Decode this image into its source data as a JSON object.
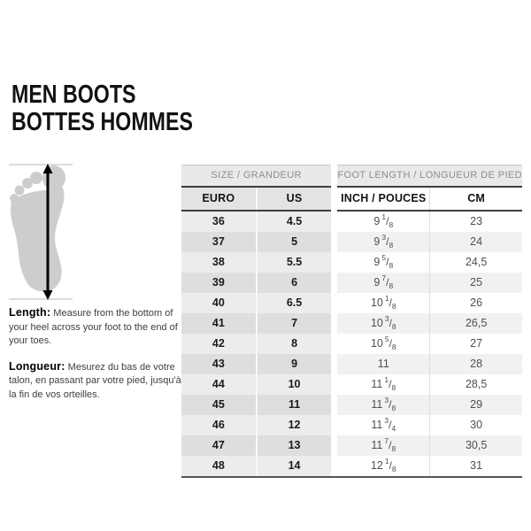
{
  "title": {
    "line1": "MEN BOOTS",
    "line2": "BOTTES HOMMES"
  },
  "notes": {
    "en_label": "Length:",
    "en_text": "Measure from the bottom of your heel across your foot to the end of your toes.",
    "fr_label": "Longueur:",
    "fr_text": "Mesurez du bas de votre talon, en passant par votre pied, jusqu'à la fin de vos orteilles."
  },
  "icons": {
    "foot": "foot-sole-silhouette",
    "arrow": "double-headed-vertical-measure-arrow"
  },
  "colors": {
    "foot_fill": "#cdcdcd",
    "header_bg": "#e9e9e9",
    "header_text": "#8d8d8d",
    "dark_border": "#3f3f3f",
    "stripe_left_light": "#ececec",
    "stripe_left_dark": "#dedede",
    "stripe_right_light": "#ffffff",
    "stripe_right_dark": "#f1f1f1"
  },
  "chart_data": {
    "type": "table",
    "title": "MEN BOOTS / BOTTES HOMMES",
    "group_headers": [
      "SIZE / GRANDEUR",
      "FOOT LENGTH / LONGUEUR DE PIED"
    ],
    "columns": [
      "EURO",
      "US",
      "INCH / POUCES",
      "CM"
    ],
    "rows": [
      {
        "euro": "36",
        "us": "4.5",
        "inch": {
          "whole": "9",
          "num": "1",
          "den": "8"
        },
        "cm": "23"
      },
      {
        "euro": "37",
        "us": "5",
        "inch": {
          "whole": "9",
          "num": "3",
          "den": "8"
        },
        "cm": "24"
      },
      {
        "euro": "38",
        "us": "5.5",
        "inch": {
          "whole": "9",
          "num": "5",
          "den": "8"
        },
        "cm": "24,5"
      },
      {
        "euro": "39",
        "us": "6",
        "inch": {
          "whole": "9",
          "num": "7",
          "den": "8"
        },
        "cm": "25"
      },
      {
        "euro": "40",
        "us": "6.5",
        "inch": {
          "whole": "10",
          "num": "1",
          "den": "8"
        },
        "cm": "26"
      },
      {
        "euro": "41",
        "us": "7",
        "inch": {
          "whole": "10",
          "num": "3",
          "den": "8"
        },
        "cm": "26,5"
      },
      {
        "euro": "42",
        "us": "8",
        "inch": {
          "whole": "10",
          "num": "5",
          "den": "8"
        },
        "cm": "27"
      },
      {
        "euro": "43",
        "us": "9",
        "inch": {
          "whole": "11"
        },
        "cm": "28"
      },
      {
        "euro": "44",
        "us": "10",
        "inch": {
          "whole": "11",
          "num": "1",
          "den": "8"
        },
        "cm": "28,5"
      },
      {
        "euro": "45",
        "us": "11",
        "inch": {
          "whole": "11",
          "num": "3",
          "den": "8"
        },
        "cm": "29"
      },
      {
        "euro": "46",
        "us": "12",
        "inch": {
          "whole": "11",
          "num": "3",
          "den": "4"
        },
        "cm": "30"
      },
      {
        "euro": "47",
        "us": "13",
        "inch": {
          "whole": "11",
          "num": "7",
          "den": "8"
        },
        "cm": "30,5"
      },
      {
        "euro": "48",
        "us": "14",
        "inch": {
          "whole": "12",
          "num": "1",
          "den": "8"
        },
        "cm": "31"
      }
    ]
  }
}
